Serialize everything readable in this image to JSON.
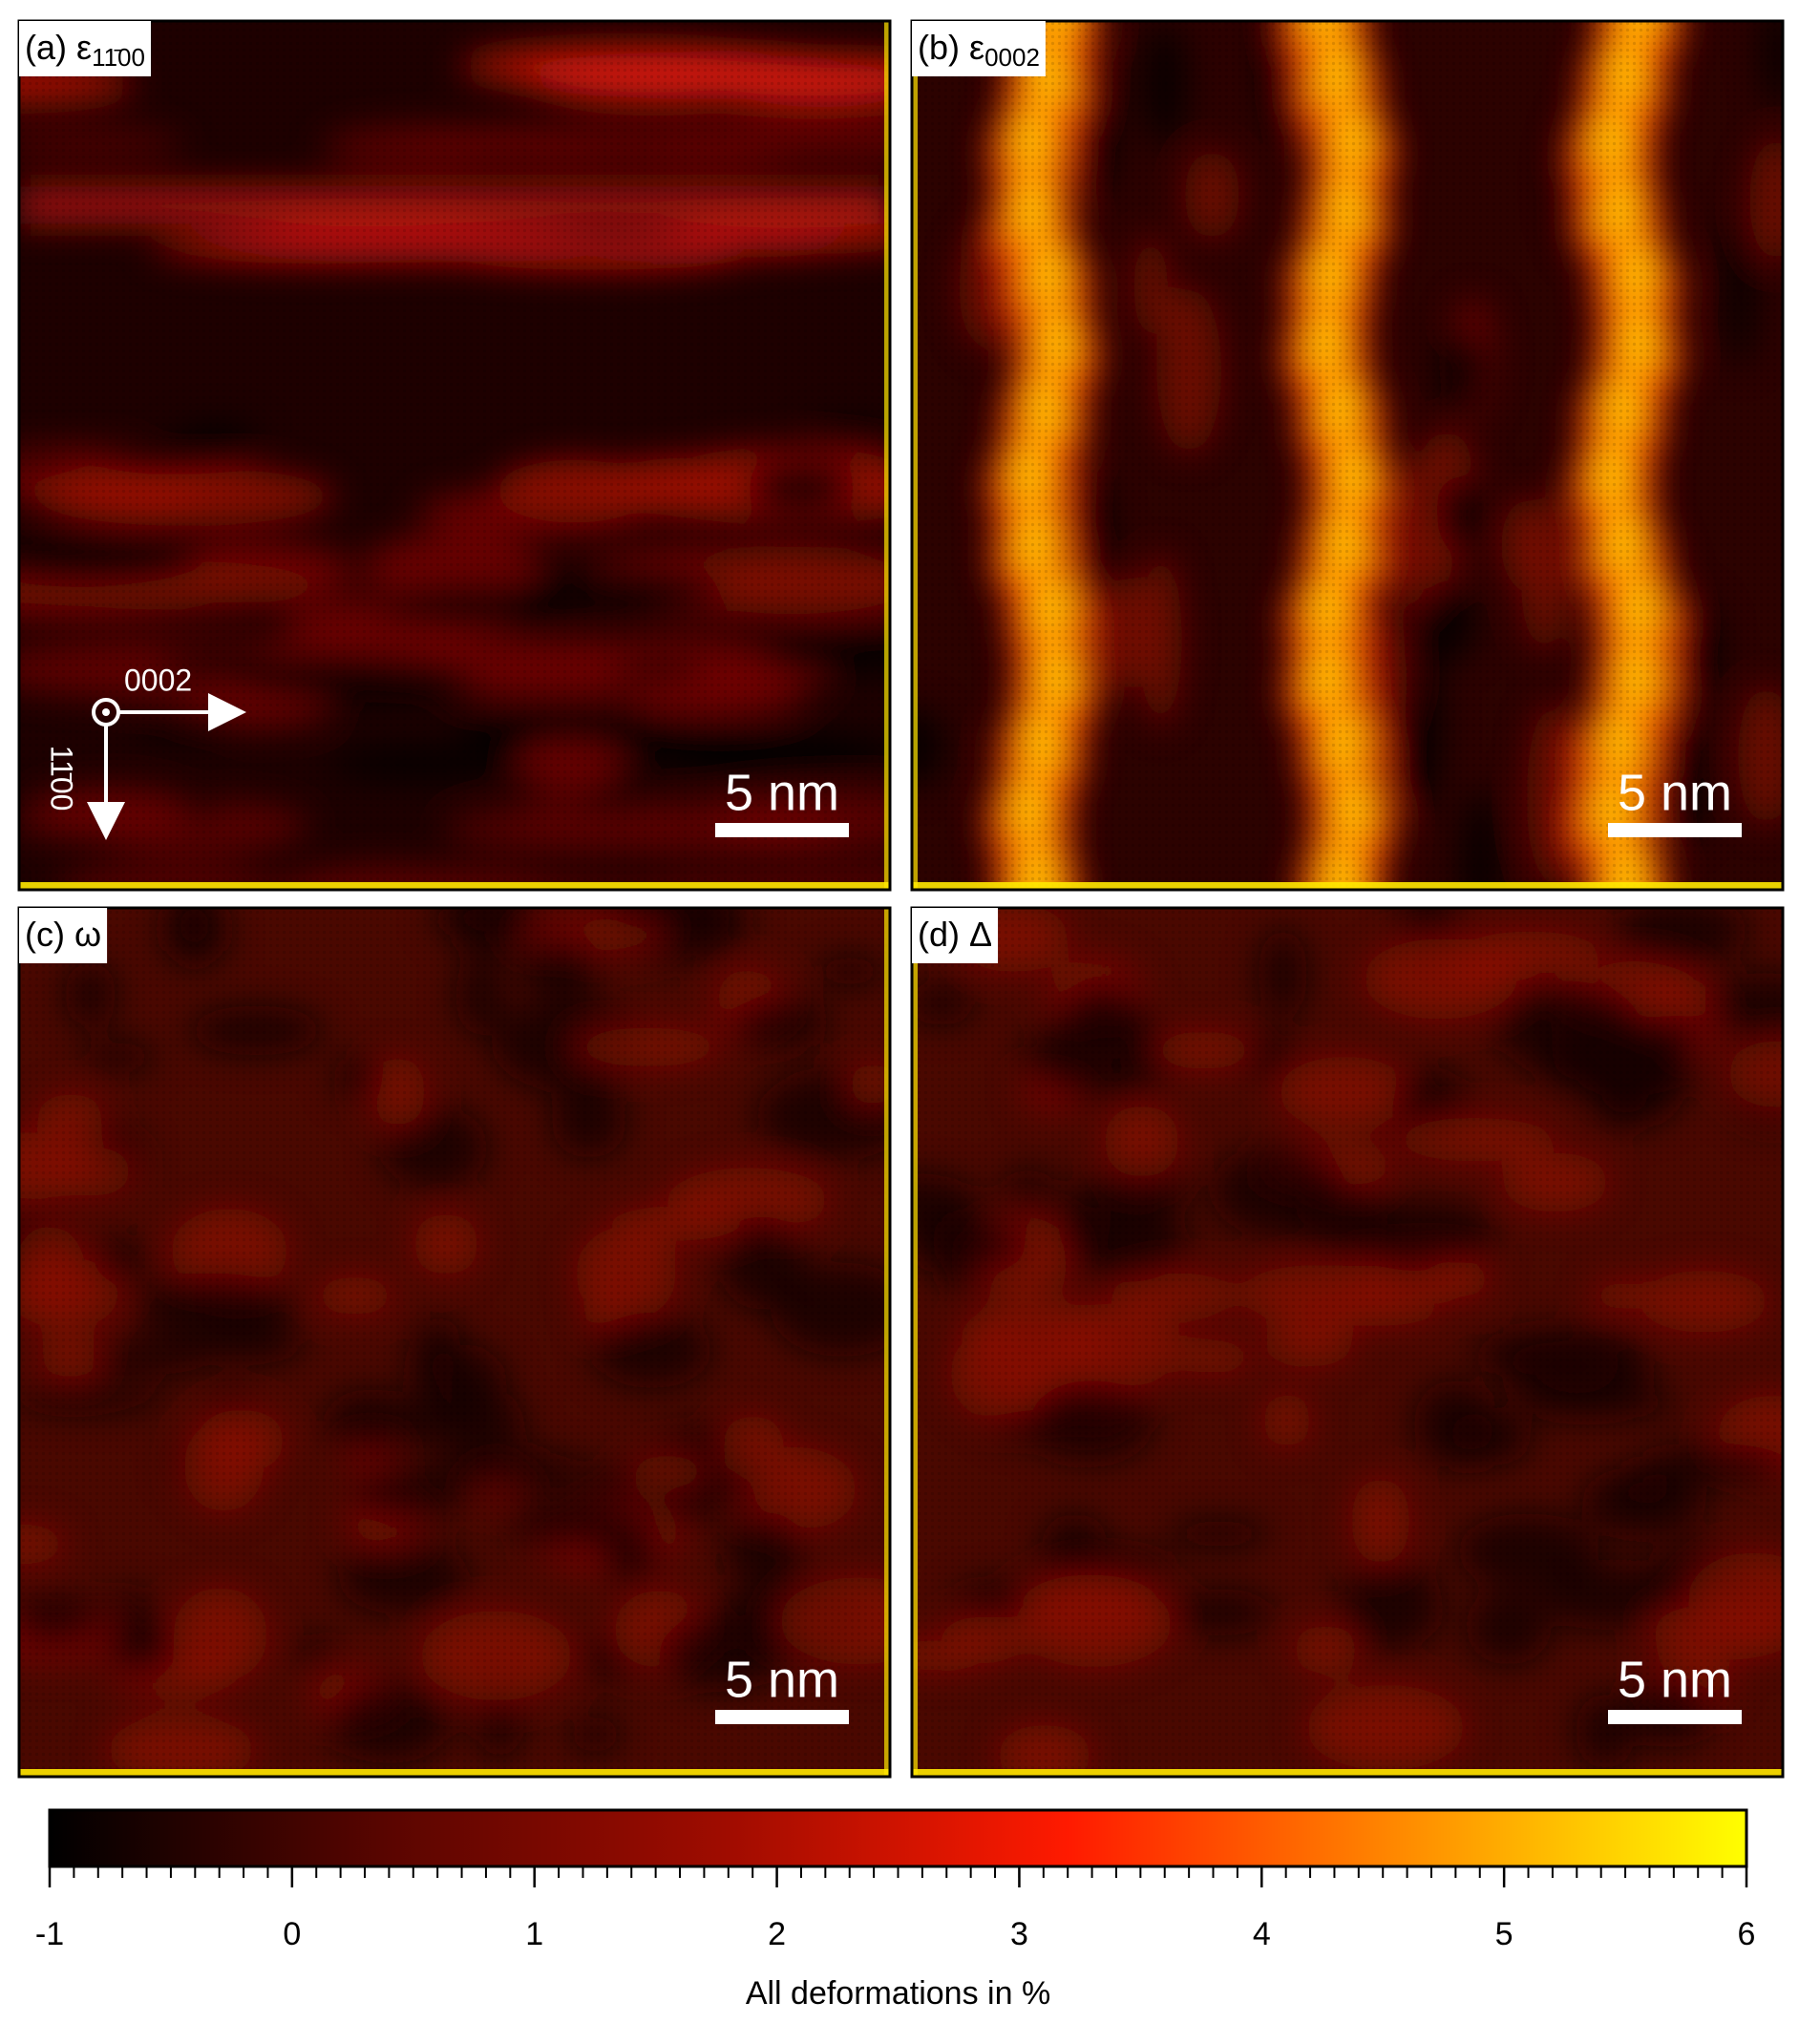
{
  "chart_data": {
    "type": "heatmap",
    "panels": [
      {
        "label": "(a) ε",
        "subscript": "11̄00",
        "scale_bar": "5 nm"
      },
      {
        "label": "(b) ε",
        "subscript": "0002",
        "scale_bar": "5 nm"
      },
      {
        "label": "(c) ω",
        "scale_bar": "5 nm"
      },
      {
        "label": "(d) Δ",
        "scale_bar": "5 nm"
      }
    ],
    "axis_arrows": {
      "x": "0002",
      "y": "11̄00"
    },
    "colorbar": {
      "label": "All deformations in %",
      "lim": [
        -1,
        6
      ],
      "ticks": [
        -1,
        0,
        1,
        2,
        3,
        4,
        5,
        6
      ],
      "colors": [
        "#000000",
        "#5a0500",
        "#a00c00",
        "#ff1a00",
        "#ff8c00",
        "#ffff00"
      ]
    }
  }
}
